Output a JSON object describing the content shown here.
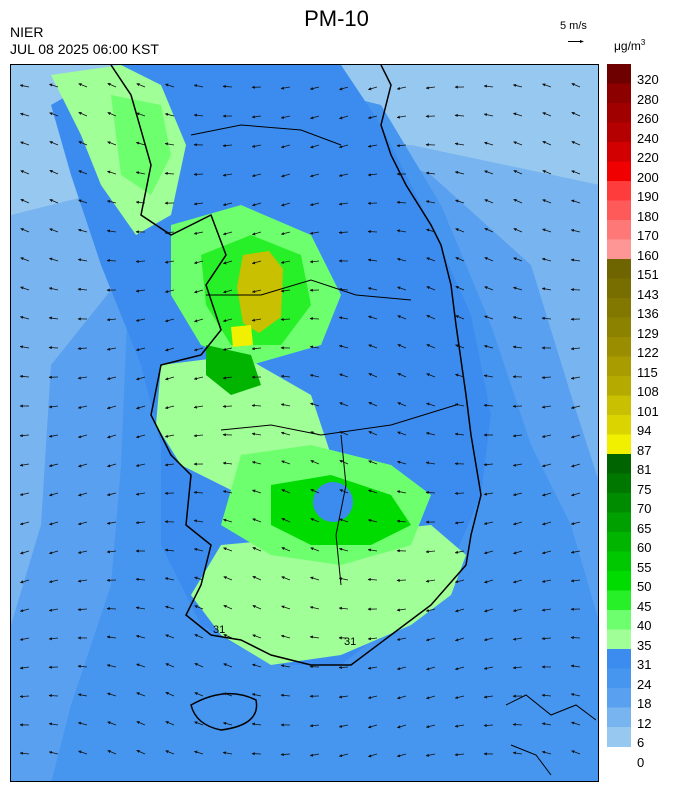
{
  "header": {
    "title": "PM-10",
    "source": "NIER",
    "timestamp": "JUL 08 2025 06:00 KST",
    "wind_scale": "5 m/s",
    "unit": "μg/m",
    "unit_exponent": "3"
  },
  "contour_labels": [
    "31",
    "31"
  ],
  "legend": {
    "bins": [
      {
        "label": "320",
        "color": "#6e0000"
      },
      {
        "label": "280",
        "color": "#8c0000"
      },
      {
        "label": "260",
        "color": "#a00000"
      },
      {
        "label": "240",
        "color": "#b40000"
      },
      {
        "label": "220",
        "color": "#d20000"
      },
      {
        "label": "200",
        "color": "#f00000"
      },
      {
        "label": "190",
        "color": "#ff3c3c"
      },
      {
        "label": "180",
        "color": "#ff5a5a"
      },
      {
        "label": "170",
        "color": "#ff7878"
      },
      {
        "label": "160",
        "color": "#ff9696"
      },
      {
        "label": "151",
        "color": "#6e6400"
      },
      {
        "label": "143",
        "color": "#786e00"
      },
      {
        "label": "136",
        "color": "#827800"
      },
      {
        "label": "129",
        "color": "#8c8200"
      },
      {
        "label": "122",
        "color": "#9a8e00"
      },
      {
        "label": "115",
        "color": "#a89c00"
      },
      {
        "label": "108",
        "color": "#b4aa00"
      },
      {
        "label": "101",
        "color": "#c8c000"
      },
      {
        "label": "94",
        "color": "#dcd400"
      },
      {
        "label": "87",
        "color": "#f0f000"
      },
      {
        "label": "81",
        "color": "#006400"
      },
      {
        "label": "75",
        "color": "#007800"
      },
      {
        "label": "70",
        "color": "#008c00"
      },
      {
        "label": "65",
        "color": "#00a000"
      },
      {
        "label": "60",
        "color": "#00b400"
      },
      {
        "label": "55",
        "color": "#00c800"
      },
      {
        "label": "50",
        "color": "#00dc00"
      },
      {
        "label": "45",
        "color": "#28f028"
      },
      {
        "label": "40",
        "color": "#6eff6e"
      },
      {
        "label": "35",
        "color": "#a0ff96"
      },
      {
        "label": "31",
        "color": "#3c8cf0"
      },
      {
        "label": "24",
        "color": "#4696f0"
      },
      {
        "label": "18",
        "color": "#5aa0f0"
      },
      {
        "label": "12",
        "color": "#78b4f0"
      },
      {
        "label": "6",
        "color": "#96c8f0"
      },
      {
        "label": "0",
        "color": ""
      }
    ]
  }
}
